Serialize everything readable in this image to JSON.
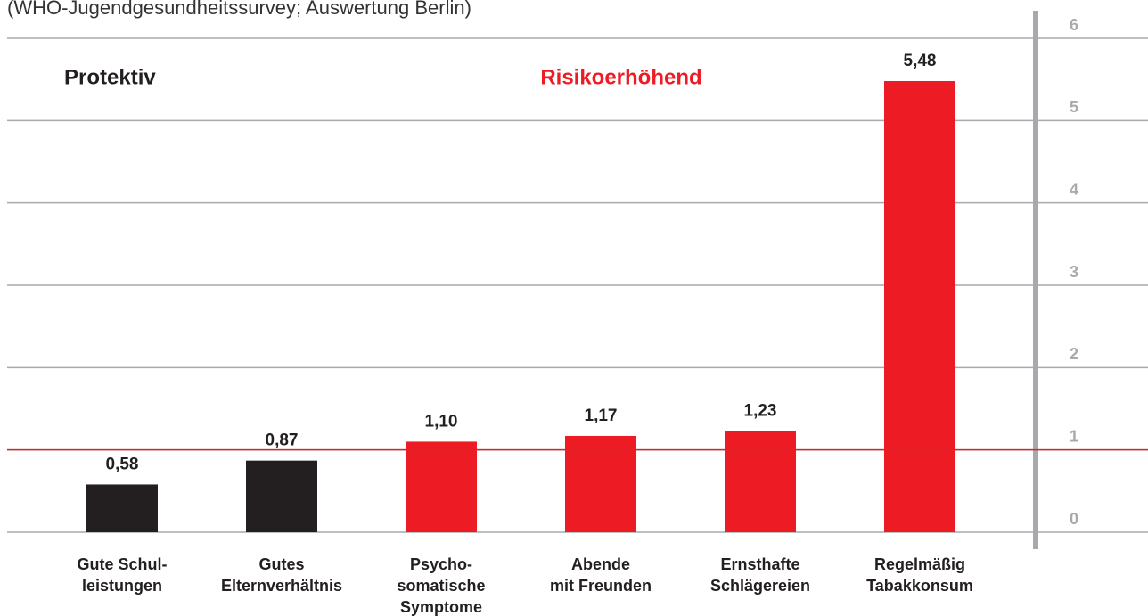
{
  "chart_data": {
    "type": "bar",
    "subtitle": "(WHO-Jugendgesundheitssurvey; Auswertung Berlin)",
    "categories": [
      "Gute Schul-\nleistungen",
      "Gutes\nElternverhältnis",
      "Psycho-\nsomatische\nSymptome",
      "Abende\nmit Freunden",
      "Ernsthafte\nSchlägereien",
      "Regelmäßig\nTabakkonsum"
    ],
    "values": [
      0.58,
      0.87,
      1.1,
      1.17,
      1.23,
      5.48
    ],
    "value_labels": [
      "0,58",
      "0,87",
      "1,10",
      "1,17",
      "1,23",
      "5,48"
    ],
    "colors": [
      "#231f20",
      "#231f20",
      "#ed1c24",
      "#ed1c24",
      "#ed1c24",
      "#ed1c24"
    ],
    "ylim": [
      0,
      6
    ],
    "yticks": [
      0,
      1,
      2,
      3,
      4,
      5,
      6
    ],
    "grid": true,
    "reference_line": {
      "value": 1,
      "color": "#d7262b"
    },
    "annotations": [
      {
        "text": "Protektiv",
        "color": "#231f20"
      },
      {
        "text": "Risikoerhöhend",
        "color": "#ed1c24"
      }
    ]
  }
}
